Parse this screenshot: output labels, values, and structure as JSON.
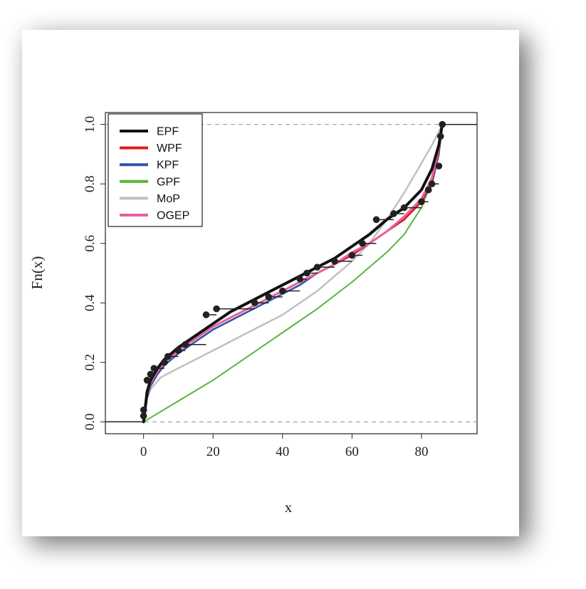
{
  "chart_data": {
    "type": "line",
    "xlabel": "x",
    "ylabel": "Fn(x)",
    "xlim": [
      -11,
      96
    ],
    "ylim": [
      -0.04,
      1.04
    ],
    "x_ticks": [
      0,
      20,
      40,
      60,
      80
    ],
    "y_ticks": [
      0.0,
      0.2,
      0.4,
      0.6,
      0.8,
      1.0
    ],
    "x_tick_labels": [
      "0",
      "20",
      "40",
      "60",
      "80"
    ],
    "y_tick_labels": [
      "0.0",
      "0.2",
      "0.4",
      "0.6",
      "0.8",
      "1.0"
    ],
    "reference_lines_y": [
      0,
      1
    ],
    "legend_position": "top-left",
    "ecdf": {
      "color": "#222222",
      "points": [
        [
          0,
          0.02
        ],
        [
          0,
          0.04
        ],
        [
          1,
          0.14
        ],
        [
          2,
          0.16
        ],
        [
          3,
          0.18
        ],
        [
          6,
          0.2
        ],
        [
          7,
          0.22
        ],
        [
          10,
          0.24
        ],
        [
          12,
          0.26
        ],
        [
          18,
          0.36
        ],
        [
          21,
          0.38
        ],
        [
          32,
          0.4
        ],
        [
          36,
          0.42
        ],
        [
          40,
          0.44
        ],
        [
          45,
          0.48
        ],
        [
          47,
          0.5
        ],
        [
          50,
          0.52
        ],
        [
          55,
          0.54
        ],
        [
          60,
          0.56
        ],
        [
          63,
          0.6
        ],
        [
          67,
          0.68
        ],
        [
          72,
          0.7
        ],
        [
          75,
          0.72
        ],
        [
          80,
          0.74
        ],
        [
          82,
          0.78
        ],
        [
          83,
          0.8
        ],
        [
          85,
          0.86
        ],
        [
          85.5,
          0.96
        ],
        [
          86,
          1.0
        ]
      ]
    },
    "series": [
      {
        "name": "EPF",
        "color": "#111111",
        "width": 4,
        "x": [
          0,
          1,
          2,
          4,
          6,
          8,
          10,
          15,
          20,
          25,
          30,
          35,
          40,
          45,
          50,
          55,
          60,
          65,
          70,
          75,
          80,
          83,
          85,
          86
        ],
        "y": [
          0,
          0.1,
          0.14,
          0.18,
          0.21,
          0.23,
          0.25,
          0.29,
          0.33,
          0.37,
          0.4,
          0.43,
          0.46,
          0.49,
          0.52,
          0.55,
          0.59,
          0.63,
          0.68,
          0.72,
          0.78,
          0.85,
          0.93,
          1.0
        ]
      },
      {
        "name": "WPF",
        "color": "#e31a1c",
        "width": 2.5,
        "x": [
          0,
          1,
          2,
          4,
          6,
          8,
          10,
          15,
          20,
          25,
          30,
          35,
          40,
          45,
          50,
          55,
          60,
          65,
          70,
          75,
          80,
          83,
          85,
          86
        ],
        "y": [
          0,
          0.09,
          0.13,
          0.17,
          0.2,
          0.22,
          0.24,
          0.28,
          0.32,
          0.35,
          0.38,
          0.41,
          0.44,
          0.47,
          0.5,
          0.53,
          0.56,
          0.6,
          0.64,
          0.68,
          0.74,
          0.81,
          0.91,
          1.0
        ]
      },
      {
        "name": "KPF",
        "color": "#3153a8",
        "width": 2.5,
        "x": [
          0,
          1,
          2,
          4,
          6,
          8,
          10,
          15,
          20,
          25,
          30,
          35,
          40,
          45,
          50,
          55,
          60,
          65,
          70,
          75,
          80,
          83,
          85,
          86
        ],
        "y": [
          0,
          0.08,
          0.12,
          0.16,
          0.19,
          0.21,
          0.23,
          0.27,
          0.31,
          0.34,
          0.37,
          0.4,
          0.43,
          0.46,
          0.5,
          0.53,
          0.56,
          0.6,
          0.64,
          0.68,
          0.74,
          0.8,
          0.9,
          1.0
        ]
      },
      {
        "name": "GPF",
        "color": "#5ab43c",
        "width": 2,
        "x": [
          0,
          5,
          10,
          20,
          30,
          40,
          50,
          60,
          70,
          75,
          80,
          83,
          85,
          86
        ],
        "y": [
          0,
          0.035,
          0.07,
          0.14,
          0.22,
          0.3,
          0.38,
          0.47,
          0.57,
          0.63,
          0.72,
          0.81,
          0.91,
          1.0
        ]
      },
      {
        "name": "MoP",
        "color": "#c0c0c0",
        "width": 2.5,
        "x": [
          0,
          1,
          2,
          5,
          10,
          20,
          30,
          40,
          50,
          60,
          65,
          70,
          75,
          80,
          83,
          86
        ],
        "y": [
          0,
          0.08,
          0.11,
          0.15,
          0.18,
          0.24,
          0.3,
          0.36,
          0.44,
          0.54,
          0.6,
          0.68,
          0.77,
          0.87,
          0.93,
          1.0
        ]
      },
      {
        "name": "OGEP",
        "color": "#e8609f",
        "width": 3,
        "x": [
          0,
          1,
          2,
          4,
          6,
          8,
          10,
          15,
          20,
          25,
          30,
          35,
          40,
          45,
          50,
          55,
          60,
          65,
          70,
          75,
          80,
          83,
          85,
          86
        ],
        "y": [
          0,
          0.09,
          0.13,
          0.17,
          0.2,
          0.22,
          0.24,
          0.28,
          0.32,
          0.35,
          0.38,
          0.41,
          0.44,
          0.47,
          0.5,
          0.53,
          0.57,
          0.6,
          0.64,
          0.69,
          0.75,
          0.82,
          0.92,
          1.0
        ]
      }
    ]
  }
}
